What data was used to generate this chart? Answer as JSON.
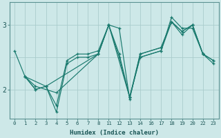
{
  "xlabel": "Humidex (Indice chaleur)",
  "background_color": "#cde8e8",
  "grid_color": "#aacccc",
  "line_color": "#1a7a6e",
  "xtick_labels": [
    "0",
    "1",
    "2",
    "3",
    "4",
    "5",
    "6",
    "7",
    "8",
    "11",
    "12",
    "13",
    "14",
    "16",
    "17",
    "18",
    "19",
    "20",
    "22",
    "23"
  ],
  "ytick_labels": [
    "2",
    "3"
  ],
  "ytick_pos": [
    2.0,
    3.0
  ],
  "ylim": [
    1.55,
    3.35
  ],
  "series": [
    {
      "xi": [
        0,
        1,
        2,
        3,
        4,
        5,
        6,
        7,
        8,
        9,
        10,
        11,
        12,
        14,
        15,
        16,
        17,
        18
      ],
      "y": [
        2.6,
        2.2,
        2.0,
        2.05,
        1.75,
        2.45,
        2.55,
        2.55,
        2.6,
        3.0,
        2.95,
        1.85,
        2.55,
        2.65,
        3.05,
        2.9,
        3.0,
        2.55
      ]
    },
    {
      "xi": [
        1,
        2,
        3,
        4,
        5,
        6,
        7,
        8,
        9,
        10,
        11,
        12,
        14,
        15,
        16,
        17,
        18,
        19
      ],
      "y": [
        2.2,
        2.0,
        2.05,
        1.65,
        2.4,
        2.5,
        2.5,
        2.55,
        3.0,
        2.5,
        1.88,
        2.55,
        2.65,
        3.05,
        2.85,
        3.0,
        2.55,
        2.45
      ]
    },
    {
      "xi": [
        1,
        2,
        4,
        8,
        9,
        11,
        12,
        14,
        15,
        16,
        17,
        18,
        19
      ],
      "y": [
        2.2,
        2.05,
        1.95,
        2.55,
        3.0,
        1.88,
        2.5,
        2.6,
        3.12,
        2.95,
        2.95,
        2.55,
        2.45
      ]
    },
    {
      "xi": [
        1,
        3,
        8,
        9,
        10,
        11,
        12,
        14,
        15,
        16,
        17,
        18,
        19
      ],
      "y": [
        2.2,
        2.05,
        2.55,
        3.0,
        2.55,
        1.88,
        2.5,
        2.6,
        3.05,
        2.9,
        3.0,
        2.55,
        2.4
      ]
    }
  ]
}
